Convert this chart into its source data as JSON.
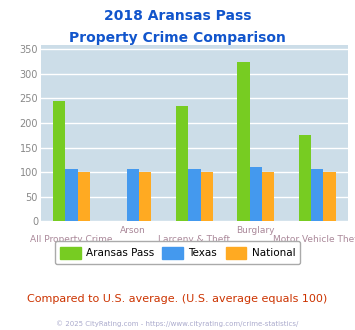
{
  "title_line1": "2018 Aransas Pass",
  "title_line2": "Property Crime Comparison",
  "categories": [
    "All Property Crime",
    "Arson",
    "Larceny & Theft",
    "Burglary",
    "Motor Vehicle Theft"
  ],
  "aransas_pass": [
    245,
    0,
    235,
    325,
    175
  ],
  "texas": [
    107,
    107,
    107,
    110,
    107
  ],
  "national": [
    100,
    100,
    100,
    100,
    100
  ],
  "color_aransas": "#77cc22",
  "color_texas": "#4499ee",
  "color_national": "#ffaa22",
  "color_title": "#1155cc",
  "color_axis_labels": "#aa8899",
  "color_compare_text": "#cc3300",
  "color_footer": "#aaaacc",
  "bg_color": "white",
  "plot_bg": "#ccdde8",
  "ylim": [
    0,
    360
  ],
  "yticks": [
    0,
    50,
    100,
    150,
    200,
    250,
    300,
    350
  ],
  "footnote": "Compared to U.S. average. (U.S. average equals 100)",
  "footer": "© 2025 CityRating.com - https://www.cityrating.com/crime-statistics/",
  "legend_labels": [
    "Aransas Pass",
    "Texas",
    "National"
  ],
  "bar_width": 0.2,
  "cat_top": [
    "",
    "Arson",
    "",
    "Burglary",
    ""
  ],
  "cat_bot": [
    "All Property Crime",
    "",
    "Larceny & Theft",
    "",
    "Motor Vehicle Theft"
  ]
}
